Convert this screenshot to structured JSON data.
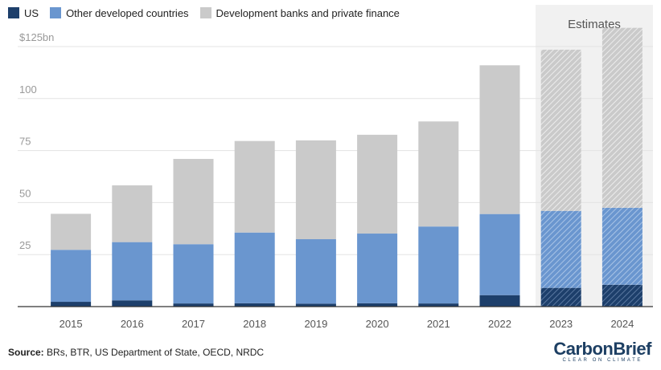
{
  "legend": [
    {
      "label": "US",
      "color": "#1d3f6b"
    },
    {
      "label": "Other developed countries",
      "color": "#6a96cf"
    },
    {
      "label": "Development banks and private finance",
      "color": "#cacaca"
    }
  ],
  "estimates_label": "Estimates",
  "source": {
    "prefix": "Source:",
    "text": "BRs, BTR, US Department of State, OECD, NRDC"
  },
  "logo": {
    "name": "CarbonBrief",
    "tagline": "CLEAR ON CLIMATE"
  },
  "chart_data": {
    "type": "bar",
    "stacked": true,
    "categories": [
      "2015",
      "2016",
      "2017",
      "2018",
      "2019",
      "2020",
      "2021",
      "2022",
      "2023",
      "2024"
    ],
    "estimated_categories": [
      "2023",
      "2024"
    ],
    "series": [
      {
        "name": "US",
        "values": [
          2.3,
          3.0,
          1.5,
          1.6,
          1.4,
          1.6,
          1.5,
          5.5,
          9.0,
          10.5
        ]
      },
      {
        "name": "Other developed countries",
        "values": [
          25.0,
          28.0,
          28.5,
          34.0,
          31.0,
          33.5,
          37.0,
          39.0,
          37.0,
          37.0
        ]
      },
      {
        "name": "Development banks and private finance",
        "values": [
          17.3,
          27.3,
          41.0,
          44.0,
          47.5,
          47.5,
          50.5,
          71.5,
          77.5,
          86.5
        ]
      }
    ],
    "y_ticks": [
      25,
      50,
      75,
      100,
      125
    ],
    "y_tick_labels": [
      "25",
      "50",
      "75",
      "100",
      "$125bn"
    ],
    "ylim": [
      0,
      125
    ],
    "grid": true,
    "legend_position": "top-left"
  }
}
